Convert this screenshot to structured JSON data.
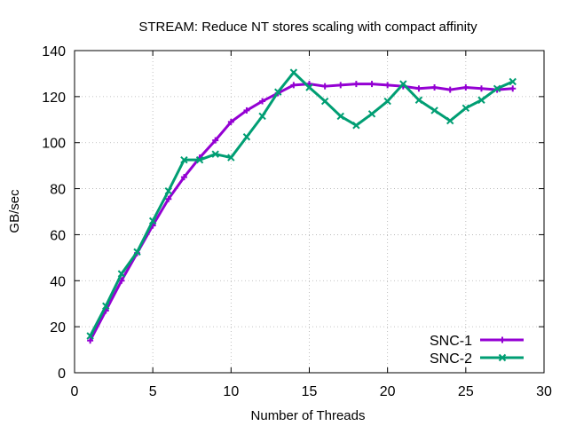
{
  "chart_data": {
    "type": "line",
    "title": "STREAM: Reduce NT stores scaling with compact affinity",
    "xlabel": "Number of Threads",
    "ylabel": "GB/sec",
    "xlim": [
      0,
      30
    ],
    "ylim": [
      0,
      140
    ],
    "xticks": [
      0,
      5,
      10,
      15,
      20,
      25,
      30
    ],
    "yticks": [
      0,
      20,
      40,
      60,
      80,
      100,
      120,
      140
    ],
    "grid": true,
    "legend_position": "bottom-right",
    "x": [
      1,
      2,
      3,
      4,
      5,
      6,
      7,
      8,
      9,
      10,
      11,
      12,
      13,
      14,
      15,
      16,
      17,
      18,
      19,
      20,
      21,
      22,
      23,
      24,
      25,
      26,
      27,
      28
    ],
    "series": [
      {
        "name": "SNC-1",
        "color": "#9400d3",
        "marker": "plus",
        "values": [
          14,
          27,
          40,
          52,
          64,
          75.5,
          85,
          93.5,
          101,
          109,
          114,
          118,
          121.5,
          125,
          125.5,
          124.5,
          125,
          125.5,
          125.5,
          125,
          124.5,
          123.5,
          124,
          123,
          124,
          123.5,
          123,
          123.5
        ]
      },
      {
        "name": "SNC-2",
        "color": "#009e73",
        "marker": "x",
        "values": [
          16,
          29,
          43,
          52.5,
          66,
          79,
          92.5,
          92.5,
          95,
          93.5,
          102.5,
          111.5,
          122,
          130.5,
          124,
          118,
          111.5,
          107.5,
          112.5,
          118,
          125.5,
          118.5,
          114,
          109.5,
          115,
          118.5,
          123.5,
          126.5
        ]
      }
    ]
  }
}
